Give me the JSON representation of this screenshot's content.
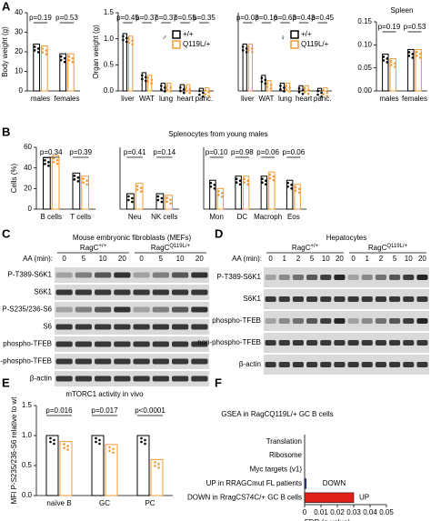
{
  "panels": [
    "A",
    "B",
    "C",
    "D",
    "E",
    "F"
  ],
  "panel_b_title": "Splenocytes from young males",
  "chart_data": [
    {
      "type": "bar",
      "ylabel": "Body weight (g)",
      "categories": [
        "males",
        "females"
      ],
      "series": [
        {
          "name": "+/+",
          "color": "#000000",
          "values": [
            24,
            19
          ]
        },
        {
          "name": "Q119L/+",
          "color": "#f39a34",
          "values": [
            23,
            19
          ]
        }
      ],
      "ylim": [
        0,
        40
      ],
      "yticks": [
        0,
        10,
        20,
        30,
        40
      ],
      "pvalues": [
        "p=0.19",
        "p=0.53"
      ]
    },
    {
      "type": "bar",
      "ylabel": "Organ weight (g)",
      "categories": [
        "liver",
        "WAT",
        "lung",
        "heart",
        "panc."
      ],
      "series": [
        {
          "name": "+/+",
          "color": "#000000",
          "values": [
            1.1,
            0.35,
            0.15,
            0.12,
            0.05
          ]
        },
        {
          "name": "Q119L/+",
          "color": "#f39a34",
          "values": [
            1.05,
            0.3,
            0.15,
            0.12,
            0.06
          ]
        }
      ],
      "ylim": [
        0,
        1.5
      ],
      "yticks": [
        {
          "value": 0,
          "label": "0.0"
        },
        {
          "value": 0.5,
          "label": "0.5"
        },
        {
          "value": 1,
          "label": "1.0"
        },
        {
          "value": 1.5,
          "label": "1.5"
        }
      ],
      "pvalues": [
        "p=0.45",
        "p=0.37",
        "p=0.37",
        "p=0.55",
        "p=0.35"
      ],
      "sex": "♂",
      "legend": true
    },
    {
      "type": "bar",
      "categories": [
        "liver",
        "WAT",
        "lung",
        "heart",
        "panc."
      ],
      "series": [
        {
          "name": "+/+",
          "color": "#000000",
          "values": [
            0.9,
            0.3,
            0.15,
            0.1,
            0.05
          ]
        },
        {
          "name": "Q119L/+",
          "color": "#f39a34",
          "values": [
            0.9,
            0.2,
            0.15,
            0.1,
            0.06
          ]
        }
      ],
      "ylim": [
        0,
        1.5
      ],
      "pvalues": [
        "p=0.03",
        "p=0.16",
        "p=0.63",
        "p=0.43",
        "p=0.45"
      ],
      "sex": "♀",
      "legend": true
    },
    {
      "type": "bar",
      "title": "Spleen",
      "categories": [
        "males",
        "females"
      ],
      "series": [
        {
          "name": "+/+",
          "color": "#000000",
          "values": [
            0.08,
            0.09
          ]
        },
        {
          "name": "Q119L/+",
          "color": "#f39a34",
          "values": [
            0.07,
            0.09
          ]
        }
      ],
      "ylim": [
        0,
        0.15
      ],
      "yticks": [
        {
          "value": 0,
          "label": "0.00"
        },
        {
          "value": 0.05,
          "label": "0.05"
        },
        {
          "value": 0.1,
          "label": "0.10"
        },
        {
          "value": 0.15,
          "label": "0.15"
        }
      ],
      "pvalues": [
        "p=0.19",
        "p=0.53"
      ]
    },
    {
      "type": "bar",
      "ylabel": "Cells (%)",
      "categories": [
        "B cells",
        "T cells"
      ],
      "series": [
        {
          "name": "+/+",
          "color": "#000000",
          "values": [
            50,
            35
          ]
        },
        {
          "name": "Q119L/+",
          "color": "#f39a34",
          "values": [
            52,
            32
          ]
        }
      ],
      "ylim": [
        0,
        60
      ],
      "yticks": [
        0,
        20,
        40,
        60
      ],
      "pvalues": [
        "p=0.34",
        "p=0.39"
      ]
    },
    {
      "type": "bar",
      "categories": [
        "Neu",
        "NK cells"
      ],
      "series": [
        {
          "name": "+/+",
          "color": "#000000",
          "values": [
            3,
            3
          ]
        },
        {
          "name": "Q119L/+",
          "color": "#f39a34",
          "values": [
            5,
            2.7
          ]
        }
      ],
      "ylim": [
        0,
        12
      ],
      "pvalues": [
        "p=0.41",
        "p=0.14"
      ]
    },
    {
      "type": "bar",
      "categories": [
        "Mon",
        "DC",
        "Macroph",
        "Eos"
      ],
      "series": [
        {
          "name": "+/+",
          "color": "#000000",
          "values": [
            0.7,
            0.8,
            0.8,
            0.7
          ]
        },
        {
          "name": "Q119L/+",
          "color": "#f39a34",
          "values": [
            0.5,
            0.8,
            0.9,
            0.6
          ]
        }
      ],
      "ylim": [
        0,
        1.5
      ],
      "pvalues": [
        "p=0.10",
        "p=0.98",
        "p=0.06",
        "p=0.06"
      ]
    },
    {
      "type": "bar",
      "title": "mTORC1 activity in vivo",
      "ylabel": "MFI P-S235/236-S6 relative to wt",
      "categories": [
        "naïve B",
        "GC",
        "PC"
      ],
      "series": [
        {
          "name": "+/+",
          "color": "#000000",
          "values": [
            1.0,
            1.0,
            1.0
          ]
        },
        {
          "name": "Q119L/+",
          "color": "#f39a34",
          "values": [
            0.9,
            0.85,
            0.6
          ]
        }
      ],
      "ylim": [
        0,
        1.5
      ],
      "yticks": [
        {
          "value": 0,
          "label": "0.0"
        },
        {
          "value": 0.5,
          "label": "0.5"
        },
        {
          "value": 1,
          "label": "1.0"
        },
        {
          "value": 1.5,
          "label": "1.5"
        }
      ],
      "pvalues": [
        "p=0.016",
        "p=0.017",
        "p<0.0001"
      ]
    },
    {
      "type": "hbar",
      "title": "GSEA in RagCQ119L/+ GC B cells",
      "xlabel": "FDR (q-value)",
      "categories": [
        "Translation",
        "Ribosome",
        "Myc targets (v1)",
        "UP in RRAGCmut FL patients",
        "DOWN in RragCS74C/+ GC B cells"
      ],
      "label_colors": [
        "#2a4fd6",
        "#2a4fd6",
        "#2a4fd6",
        "#2a4fd6",
        "#e0201b"
      ],
      "values": [
        0,
        0,
        0,
        0.001,
        0.03
      ],
      "colors": [
        "#2a4fd6",
        "#2a4fd6",
        "#2a4fd6",
        "#2a4fd6",
        "#e0201b"
      ],
      "annotations": [
        "DOWN",
        "UP"
      ],
      "xlim": [
        0,
        0.05
      ],
      "xticks": [
        0,
        0.01,
        0.02,
        0.03,
        0.04,
        0.05
      ]
    }
  ],
  "blots": [
    {
      "title": "Mouse embryonic fibroblasts (MEFs)",
      "groups": [
        {
          "base": "RagC",
          "sup": "+/+"
        },
        {
          "base": "RagC",
          "sup": "Q119L/+"
        }
      ],
      "aa_label": "AA (min):",
      "lanes": [
        "0",
        "5",
        "10",
        "20",
        "0",
        "5",
        "10",
        "20"
      ],
      "rows": [
        "P-T389-S6K1",
        "S6K1",
        "P-S235/236-S6",
        "S6",
        "phospho-TFEB",
        "non-phospho-TFEB",
        "β-actin"
      ]
    },
    {
      "title": "Hepatocytes",
      "groups": [
        {
          "base": "RagC",
          "sup": "+/+"
        },
        {
          "base": "RagC",
          "sup": "Q119L/+"
        }
      ],
      "aa_label": "AA (min):",
      "lanes": [
        "0",
        "1",
        "2",
        "5",
        "10",
        "20",
        "0",
        "1",
        "2",
        "5",
        "10",
        "20"
      ],
      "rows": [
        "P-T389-S6K1",
        "S6K1",
        "phospho-TFEB",
        "non-phospho-TFEB",
        "β-actin"
      ]
    }
  ]
}
